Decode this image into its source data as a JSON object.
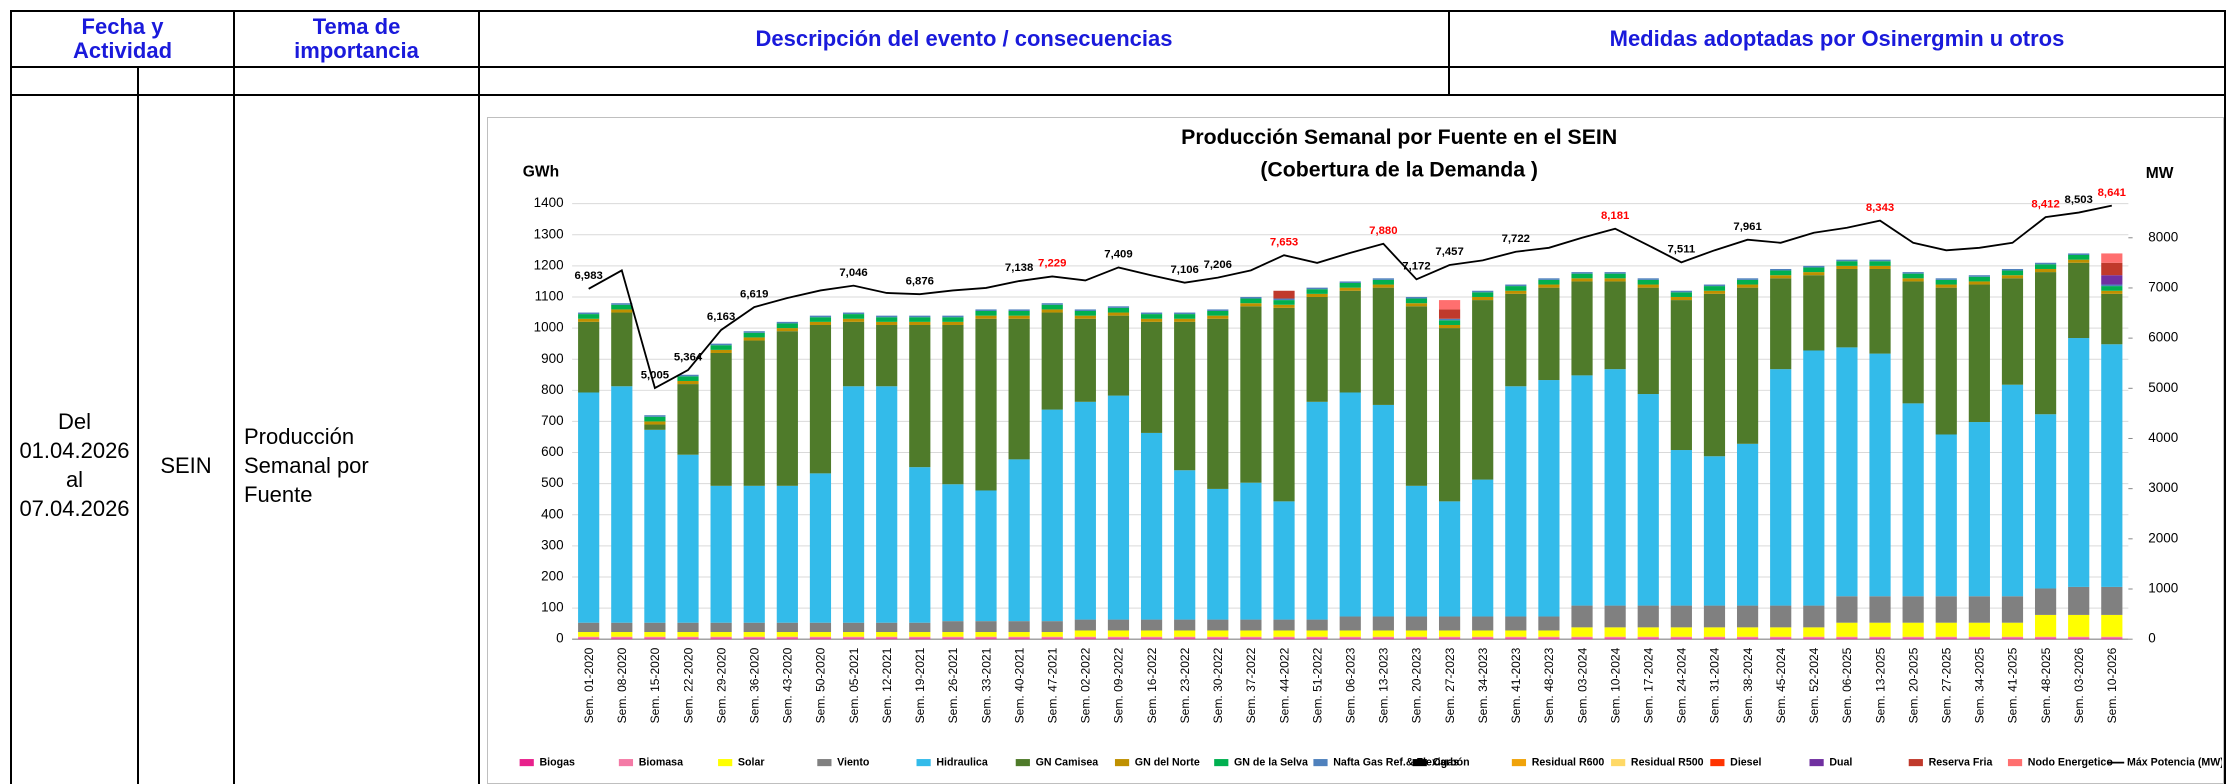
{
  "table": {
    "header": [
      [
        "Fecha y",
        "Actividad"
      ],
      [
        "Tema de",
        "importancia"
      ],
      [
        "Descripción del evento / consecuencias"
      ],
      [
        "Medidas adoptadas por Osinergmin u otros"
      ]
    ],
    "row": [
      [
        "Del",
        "01.04.2026",
        "al",
        "07.04.2026"
      ],
      [
        "SEIN"
      ],
      [
        "Producción",
        "Semanal por",
        "Fuente"
      ]
    ]
  },
  "chart_data": {
    "type": "bar",
    "stacked": true,
    "title": [
      "Producción Semanal por Fuente en el SEIN",
      "(Cobertura de la Demanda )"
    ],
    "ylabel": "GWh",
    "y2label": "MW",
    "ylim": [
      0,
      1400
    ],
    "yticks": [
      0,
      100,
      200,
      300,
      400,
      500,
      600,
      700,
      800,
      900,
      1000,
      1100,
      1200,
      1300,
      1400
    ],
    "y2lim": [
      0,
      8680
    ],
    "y2ticks": [
      0,
      1000,
      2000,
      3000,
      4000,
      5000,
      6000,
      7000,
      8000
    ],
    "grid": true,
    "legend": "bottom",
    "categories": [
      "Sem. 01-2020",
      "Sem. 08-2020",
      "Sem. 15-2020",
      "Sem. 22-2020",
      "Sem. 29-2020",
      "Sem. 36-2020",
      "Sem. 43-2020",
      "Sem. 50-2020",
      "Sem. 05-2021",
      "Sem. 12-2021",
      "Sem. 19-2021",
      "Sem. 26-2021",
      "Sem. 33-2021",
      "Sem. 40-2021",
      "Sem. 47-2021",
      "Sem. 02-2022",
      "Sem. 09-2022",
      "Sem. 16-2022",
      "Sem. 23-2022",
      "Sem. 30-2022",
      "Sem. 37-2022",
      "Sem. 44-2022",
      "Sem. 51-2022",
      "Sem. 06-2023",
      "Sem. 13-2023",
      "Sem. 20-2023",
      "Sem. 27-2023",
      "Sem. 34-2023",
      "Sem. 41-2023",
      "Sem. 48-2023",
      "Sem. 03-2024",
      "Sem. 10-2024",
      "Sem. 17-2024",
      "Sem. 24-2024",
      "Sem. 31-2024",
      "Sem. 38-2024",
      "Sem. 45-2024",
      "Sem. 52-2024",
      "Sem. 06-2025",
      "Sem. 13-2025",
      "Sem. 20-2025",
      "Sem. 27-2025",
      "Sem. 34-2025",
      "Sem. 41-2025",
      "Sem. 48-2025",
      "Sem. 03-2026",
      "Sem. 10-2026"
    ],
    "series": [
      {
        "name": "Biogas",
        "color": "#e8218c",
        "values": [
          3,
          3,
          3,
          3,
          3,
          3,
          3,
          3,
          3,
          3,
          3,
          3,
          3,
          3,
          3,
          3,
          3,
          3,
          3,
          3,
          3,
          3,
          3,
          3,
          3,
          3,
          3,
          3,
          3,
          3,
          3,
          3,
          3,
          3,
          3,
          3,
          3,
          3,
          3,
          3,
          3,
          3,
          3,
          3,
          3,
          3,
          3
        ]
      },
      {
        "name": "Biomasa",
        "color": "#f47aa6",
        "values": [
          5,
          5,
          5,
          5,
          5,
          5,
          5,
          5,
          5,
          5,
          5,
          5,
          5,
          5,
          5,
          5,
          5,
          5,
          5,
          5,
          5,
          5,
          5,
          5,
          5,
          5,
          5,
          5,
          5,
          5,
          5,
          5,
          5,
          5,
          5,
          5,
          5,
          5,
          5,
          5,
          5,
          5,
          5,
          5,
          5,
          5,
          5
        ]
      },
      {
        "name": "Solar",
        "color": "#ffff00",
        "values": [
          15,
          15,
          15,
          15,
          15,
          15,
          15,
          15,
          15,
          15,
          15,
          15,
          15,
          15,
          15,
          20,
          20,
          20,
          20,
          20,
          20,
          20,
          20,
          20,
          20,
          20,
          20,
          20,
          20,
          20,
          30,
          30,
          30,
          30,
          30,
          30,
          30,
          30,
          45,
          45,
          45,
          45,
          45,
          45,
          70,
          70,
          70
        ]
      },
      {
        "name": "Viento",
        "color": "#808080",
        "values": [
          30,
          30,
          30,
          30,
          30,
          30,
          30,
          30,
          30,
          30,
          30,
          35,
          35,
          35,
          35,
          35,
          35,
          35,
          35,
          35,
          35,
          35,
          35,
          45,
          45,
          45,
          45,
          45,
          45,
          45,
          70,
          70,
          70,
          70,
          70,
          70,
          70,
          70,
          85,
          85,
          85,
          85,
          85,
          85,
          85,
          90,
          90
        ]
      },
      {
        "name": "Hidraulica",
        "color": "#33bbea",
        "values": [
          740,
          760,
          620,
          540,
          440,
          440,
          440,
          480,
          760,
          760,
          500,
          440,
          420,
          520,
          680,
          700,
          720,
          600,
          480,
          420,
          440,
          380,
          700,
          720,
          680,
          420,
          370,
          440,
          740,
          760,
          740,
          760,
          680,
          500,
          480,
          520,
          760,
          820,
          800,
          780,
          620,
          520,
          560,
          680,
          560,
          800,
          780
        ]
      },
      {
        "name": "GN Camisea",
        "color": "#4f7b2a",
        "values": [
          227,
          237,
          17,
          227,
          427,
          467,
          497,
          477,
          207,
          197,
          457,
          512,
          552,
          452,
          312,
          267,
          257,
          357,
          477,
          547,
          567,
          622,
          337,
          327,
          377,
          577,
          557,
          577,
          297,
          297,
          302,
          282,
          342,
          482,
          522,
          502,
          292,
          242,
          252,
          272,
          392,
          472,
          442,
          342,
          457,
          242,
          162
        ]
      },
      {
        "name": "GN del Norte",
        "color": "#bf9000",
        "values": [
          10,
          10,
          10,
          10,
          10,
          10,
          10,
          10,
          10,
          10,
          10,
          10,
          10,
          10,
          10,
          10,
          10,
          10,
          10,
          10,
          10,
          10,
          10,
          10,
          10,
          10,
          10,
          10,
          10,
          10,
          10,
          10,
          10,
          10,
          10,
          10,
          10,
          10,
          10,
          10,
          10,
          10,
          10,
          10,
          10,
          10,
          10
        ]
      },
      {
        "name": "GN de la Selva",
        "color": "#00b050",
        "values": [
          15,
          15,
          15,
          15,
          15,
          15,
          15,
          15,
          15,
          15,
          15,
          15,
          15,
          15,
          15,
          15,
          15,
          15,
          15,
          15,
          15,
          15,
          15,
          15,
          15,
          15,
          15,
          15,
          15,
          15,
          15,
          15,
          15,
          15,
          15,
          15,
          15,
          15,
          15,
          15,
          15,
          15,
          15,
          15,
          15,
          15,
          15
        ]
      },
      {
        "name": "Nafta Gas Ref.& Flexigas",
        "color": "#4f81bd",
        "values": [
          5,
          5,
          5,
          5,
          5,
          5,
          5,
          5,
          5,
          5,
          5,
          5,
          5,
          5,
          5,
          5,
          5,
          5,
          5,
          5,
          5,
          5,
          5,
          5,
          5,
          5,
          5,
          5,
          5,
          5,
          5,
          5,
          5,
          5,
          5,
          5,
          5,
          5,
          5,
          5,
          5,
          5,
          5,
          5,
          5,
          5,
          5
        ]
      },
      {
        "name": "Carbón",
        "color": "#000000",
        "values": [
          0,
          0,
          0,
          0,
          0,
          0,
          0,
          0,
          0,
          0,
          0,
          0,
          0,
          0,
          0,
          0,
          0,
          0,
          0,
          0,
          0,
          0,
          0,
          0,
          0,
          0,
          0,
          0,
          0,
          0,
          0,
          0,
          0,
          0,
          0,
          0,
          0,
          0,
          0,
          0,
          0,
          0,
          0,
          0,
          0,
          0,
          0
        ]
      },
      {
        "name": "Residual R600",
        "color": "#f0a30a",
        "values": [
          0,
          0,
          0,
          0,
          0,
          0,
          0,
          0,
          0,
          0,
          0,
          0,
          0,
          0,
          0,
          0,
          0,
          0,
          0,
          0,
          0,
          0,
          0,
          0,
          0,
          0,
          0,
          0,
          0,
          0,
          0,
          0,
          0,
          0,
          0,
          0,
          0,
          0,
          0,
          0,
          0,
          0,
          0,
          0,
          0,
          0,
          0
        ]
      },
      {
        "name": "Residual R500",
        "color": "#ffd966",
        "values": [
          0,
          0,
          0,
          0,
          0,
          0,
          0,
          0,
          0,
          0,
          0,
          0,
          0,
          0,
          0,
          0,
          0,
          0,
          0,
          0,
          0,
          0,
          0,
          0,
          0,
          0,
          0,
          0,
          0,
          0,
          0,
          0,
          0,
          0,
          0,
          0,
          0,
          0,
          0,
          0,
          0,
          0,
          0,
          0,
          0,
          0,
          0
        ]
      },
      {
        "name": "Diesel",
        "color": "#ff3300",
        "values": [
          0,
          0,
          0,
          0,
          0,
          0,
          0,
          0,
          0,
          0,
          0,
          0,
          0,
          0,
          0,
          0,
          0,
          0,
          0,
          0,
          0,
          0,
          0,
          0,
          0,
          0,
          0,
          0,
          0,
          0,
          0,
          0,
          0,
          0,
          0,
          0,
          0,
          0,
          0,
          0,
          0,
          0,
          0,
          0,
          0,
          0,
          0
        ]
      },
      {
        "name": "Dual",
        "color": "#7030a0",
        "values": [
          0,
          0,
          0,
          0,
          0,
          0,
          0,
          0,
          0,
          0,
          0,
          0,
          0,
          0,
          0,
          0,
          0,
          0,
          0,
          0,
          0,
          0,
          0,
          0,
          0,
          0,
          0,
          0,
          0,
          0,
          0,
          0,
          0,
          0,
          0,
          0,
          0,
          0,
          0,
          0,
          0,
          0,
          0,
          0,
          0,
          0,
          30
        ]
      },
      {
        "name": "Reserva Fria",
        "color": "#c0392b",
        "values": [
          0,
          0,
          0,
          0,
          0,
          0,
          0,
          0,
          0,
          0,
          0,
          0,
          0,
          0,
          0,
          0,
          0,
          0,
          0,
          0,
          0,
          25,
          0,
          0,
          0,
          0,
          30,
          0,
          0,
          0,
          0,
          0,
          0,
          0,
          0,
          0,
          0,
          0,
          0,
          0,
          0,
          0,
          0,
          0,
          0,
          0,
          40
        ]
      },
      {
        "name": "Nodo Energetico",
        "color": "#ff6f6f",
        "values": [
          0,
          0,
          0,
          0,
          0,
          0,
          0,
          0,
          0,
          0,
          0,
          0,
          0,
          0,
          0,
          0,
          0,
          0,
          0,
          0,
          0,
          0,
          0,
          0,
          0,
          0,
          30,
          0,
          0,
          0,
          0,
          0,
          0,
          0,
          0,
          0,
          0,
          0,
          0,
          0,
          0,
          0,
          0,
          0,
          0,
          0,
          30
        ]
      },
      {
        "name": "Máx Potencia (MW)",
        "type": "line",
        "axis": "y2",
        "color": "#000000",
        "values": [
          6983,
          7350,
          5005,
          5364,
          6163,
          6619,
          6800,
          6950,
          7046,
          6900,
          6876,
          6950,
          7000,
          7138,
          7229,
          7150,
          7409,
          7250,
          7106,
          7206,
          7350,
          7653,
          7500,
          7700,
          7880,
          7172,
          7457,
          7550,
          7722,
          7800,
          8000,
          8181,
          7850,
          7511,
          7750,
          7961,
          7900,
          8100,
          8200,
          8343,
          7900,
          7750,
          7800,
          7900,
          8412,
          8503,
          8641
        ],
        "value_labels": [
          "6,983",
          null,
          "5,005",
          "5,364",
          "6,163",
          "6,619",
          null,
          null,
          "7,046",
          null,
          "6,876",
          null,
          null,
          "7,138",
          "7,229",
          null,
          "7,409",
          null,
          "7,106",
          "7,206",
          null,
          "7,653",
          null,
          null,
          "7,880",
          "7,172",
          "7,457",
          null,
          "7,722",
          null,
          null,
          "8,181",
          null,
          "7,511",
          null,
          "7,961",
          null,
          null,
          null,
          "8,343",
          null,
          null,
          null,
          null,
          "8,412",
          "8,503",
          "8,641"
        ],
        "value_label_colors": [
          "#000000",
          null,
          "#000000",
          "#000000",
          "#000000",
          "#000000",
          null,
          null,
          "#000000",
          null,
          "#000000",
          null,
          null,
          "#000000",
          "#ff0000",
          null,
          "#000000",
          null,
          "#000000",
          "#000000",
          null,
          "#ff0000",
          null,
          null,
          "#ff0000",
          "#000000",
          "#000000",
          null,
          "#000000",
          null,
          null,
          "#ff0000",
          null,
          "#000000",
          null,
          "#000000",
          null,
          null,
          null,
          "#ff0000",
          null,
          null,
          null,
          null,
          "#ff0000",
          "#000000",
          "#ff0000"
        ]
      }
    ]
  }
}
